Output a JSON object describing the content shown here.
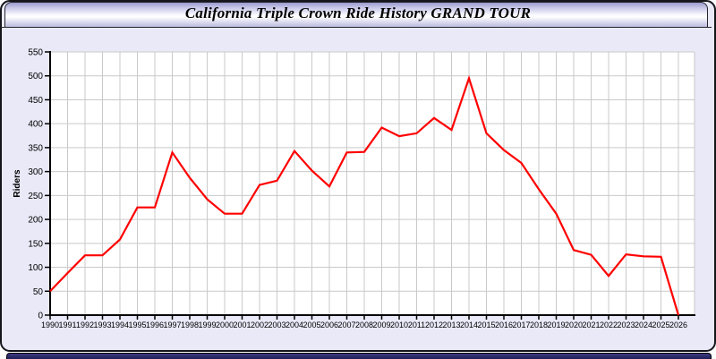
{
  "title": "California Triple Crown Ride History GRAND TOUR",
  "theme": {
    "panel_bg": "#e9e9f8",
    "plot_bg": "#ffffff",
    "grid_color": "#c9c9c9",
    "axis_color": "#000000",
    "bottom_bar_color": "#23236b"
  },
  "chart_data": {
    "type": "line",
    "title": "California Triple Crown Ride History GRAND TOUR",
    "xlabel": "",
    "ylabel": "Riders",
    "ylim": [
      0,
      550
    ],
    "ytick_step": 50,
    "grid": true,
    "legend": "none",
    "x": [
      1990,
      1991,
      1992,
      1993,
      1994,
      1995,
      1996,
      1997,
      1998,
      1999,
      2000,
      2001,
      2002,
      2003,
      2004,
      2005,
      2006,
      2007,
      2008,
      2009,
      2010,
      2011,
      2012,
      2013,
      2014,
      2015,
      2016,
      2017,
      2018,
      2019,
      2020,
      2021,
      2022,
      2023,
      2024,
      2025,
      2026
    ],
    "series": [
      {
        "name": "Riders",
        "color": "#ff0000",
        "values": [
          50,
          88,
          125,
          125,
          158,
          225,
          225,
          340,
          287,
          242,
          212,
          212,
          272,
          281,
          343,
          302,
          269,
          340,
          341,
          392,
          374,
          380,
          412,
          387,
          495,
          380,
          345,
          318,
          263,
          212,
          136,
          126,
          82,
          127,
          123,
          122,
          0
        ]
      }
    ]
  }
}
